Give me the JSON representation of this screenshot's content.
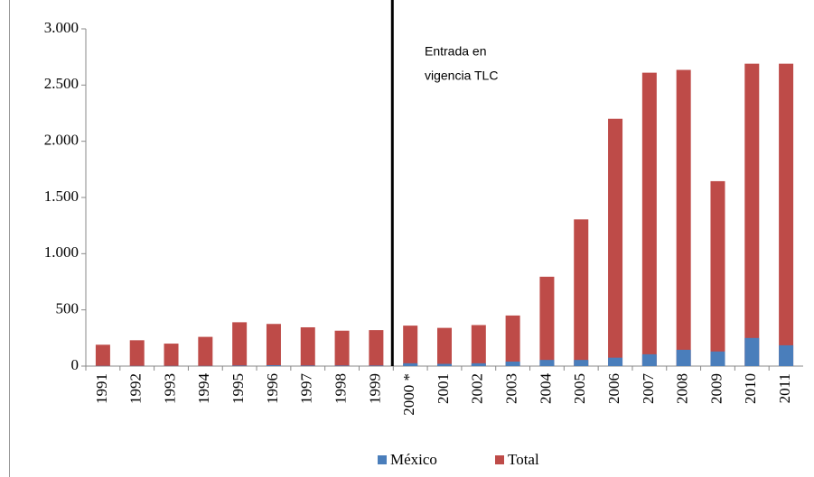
{
  "chart_data": {
    "type": "bar",
    "categories": [
      "1991",
      "1992",
      "1993",
      "1994",
      "1995",
      "1996",
      "1997",
      "1998",
      "1999",
      "2000 *",
      "2001",
      "2002",
      "2003",
      "2004",
      "2005",
      "2006",
      "2007",
      "2008",
      "2009",
      "2010",
      "2011"
    ],
    "series": [
      {
        "name": "México",
        "color": "#4a7ebb",
        "values": [
          2,
          2,
          2,
          2,
          5,
          8,
          5,
          5,
          5,
          25,
          20,
          25,
          40,
          55,
          55,
          75,
          105,
          145,
          130,
          250,
          185
        ]
      },
      {
        "name": "Total",
        "color": "#be4b48",
        "values": [
          190,
          230,
          200,
          260,
          390,
          375,
          345,
          315,
          320,
          360,
          340,
          365,
          450,
          795,
          1305,
          2200,
          2610,
          2635,
          1645,
          2690,
          2690
        ]
      }
    ],
    "ylim": [
      0,
      3000
    ],
    "yticks": [
      0,
      500,
      {
        "value": 1000,
        "label": "1.000"
      },
      {
        "value": 1500,
        "label": "1.500"
      },
      {
        "value": 2000,
        "label": "2.000"
      },
      {
        "value": 2500,
        "label": "2.500"
      },
      {
        "value": 3000,
        "label": "3.000"
      }
    ],
    "annotation": [
      "Entrada  en",
      "vigencia TLC"
    ],
    "grid": false,
    "legend": "bottom"
  }
}
